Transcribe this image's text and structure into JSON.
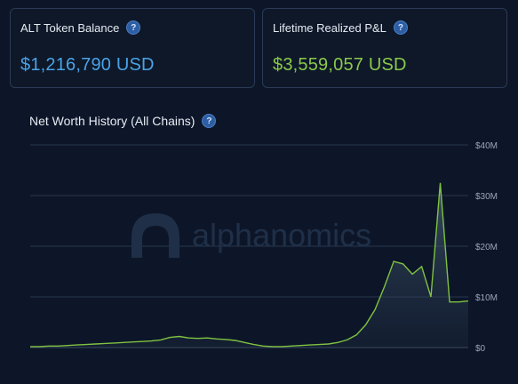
{
  "cards": {
    "alt_balance": {
      "title": "ALT Token Balance",
      "value": "$1,216,790 USD",
      "value_color": "#4aa3e8"
    },
    "lifetime_pnl": {
      "title": "Lifetime Realized P&L",
      "value": "$3,559,057 USD",
      "value_color": "#8bc94a"
    }
  },
  "help_glyph": "?",
  "chart_section": {
    "title": "Net Worth History (All Chains)"
  },
  "watermark": {
    "text": "alphanomics",
    "icon": "alphanomics-logo-icon"
  },
  "chart_data": {
    "type": "area",
    "title": "Net Worth History (All Chains)",
    "ylim": [
      0,
      40
    ],
    "y_ticks": [
      0,
      10,
      20,
      30,
      40
    ],
    "y_tick_labels": [
      "$0",
      "$10M",
      "$20M",
      "$30M",
      "$40M"
    ],
    "line_color": "#7fc241",
    "grid": true,
    "series": [
      {
        "values": [
          0.2,
          0.2,
          0.3,
          0.3,
          0.4,
          0.5,
          0.6,
          0.7,
          0.8,
          0.9,
          1.0,
          1.1,
          1.2,
          1.3,
          1.5,
          2.0,
          2.2,
          1.9,
          1.8,
          1.9,
          1.7,
          1.6,
          1.4,
          1.0,
          0.6,
          0.3,
          0.2,
          0.2,
          0.3,
          0.4,
          0.5,
          0.6,
          0.7,
          1.0,
          1.5,
          2.5,
          4.5,
          7.5,
          12.0,
          17.0,
          16.5,
          14.5,
          16.0,
          10.0,
          32.5,
          9.0,
          9.0,
          9.2
        ]
      }
    ]
  }
}
